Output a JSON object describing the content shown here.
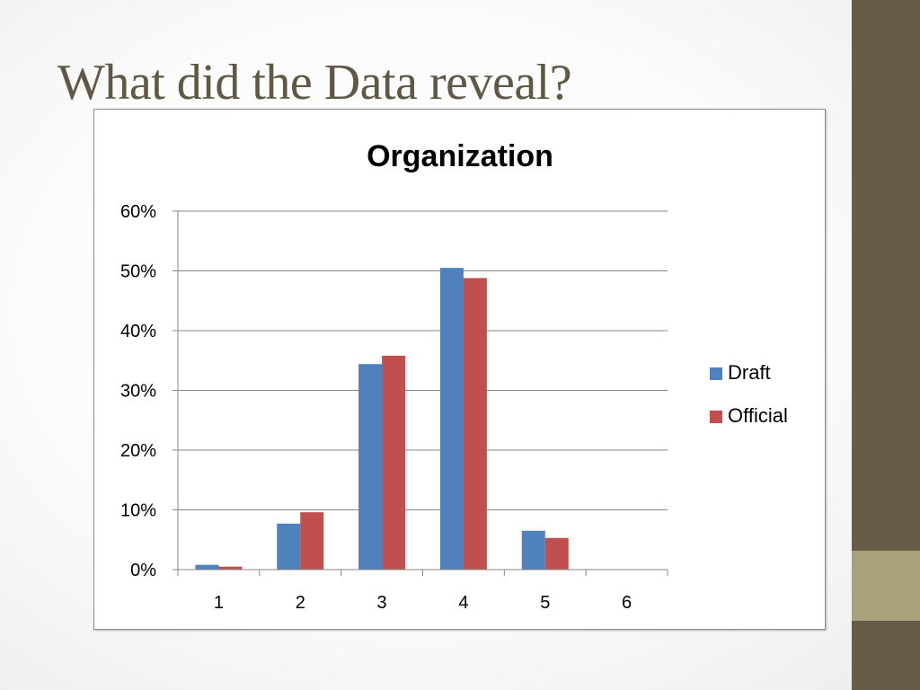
{
  "slide": {
    "title": "What did the Data reveal?"
  },
  "colors": {
    "sidebar": "#675c48",
    "sidebar_accent": "#a8a27a",
    "title_text": "#5e5845"
  },
  "chart_data": {
    "type": "bar",
    "title": "Organization",
    "xlabel": "",
    "ylabel": "",
    "categories": [
      "1",
      "2",
      "3",
      "4",
      "5",
      "6"
    ],
    "series": [
      {
        "name": "Draft",
        "color": "#4f81bd",
        "values": [
          0.008,
          0.077,
          0.344,
          0.505,
          0.065,
          0
        ]
      },
      {
        "name": "Official",
        "color": "#c0504d",
        "values": [
          0.005,
          0.096,
          0.358,
          0.488,
          0.053,
          0
        ]
      }
    ],
    "ylim": [
      0,
      0.6
    ],
    "yticks": [
      0,
      0.1,
      0.2,
      0.3,
      0.4,
      0.5,
      0.6
    ],
    "ytick_labels": [
      "0%",
      "10%",
      "20%",
      "30%",
      "40%",
      "50%",
      "60%"
    ],
    "grid": true,
    "legend_position": "right"
  }
}
